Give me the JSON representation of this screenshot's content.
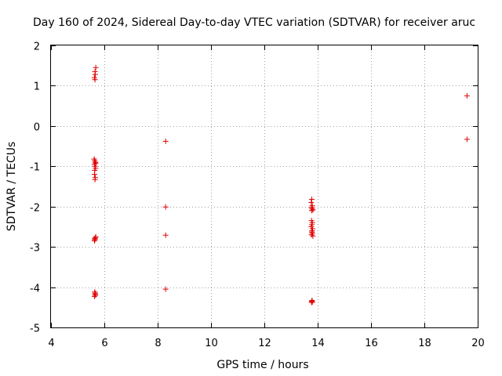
{
  "chart_data": {
    "type": "scatter",
    "title": "Day 160 of 2024, Sidereal Day-to-day VTEC variation (SDTVAR) for receiver aruc",
    "xlabel": "GPS time / hours",
    "ylabel": "SDTVAR / TECUs",
    "xlim": [
      4,
      20
    ],
    "ylim": [
      -5,
      2
    ],
    "xticks": [
      4,
      6,
      8,
      10,
      12,
      14,
      16,
      18,
      20
    ],
    "yticks": [
      -5,
      -4,
      -3,
      -2,
      -1,
      0,
      1,
      2
    ],
    "xtick_labels": [
      "4",
      "6",
      "8",
      "10",
      "12",
      "14",
      "16",
      "18",
      "20"
    ],
    "ytick_labels": [
      "-5",
      "-4",
      "-3",
      "-2",
      "-1",
      "0",
      "1",
      "2"
    ],
    "grid": true,
    "legend": "none",
    "series": [
      {
        "name": "SDTVAR",
        "color": "#e00000",
        "marker": "plus",
        "x": [
          5.68,
          5.65,
          5.66,
          5.63,
          5.65,
          5.62,
          5.64,
          5.66,
          5.68,
          5.63,
          5.65,
          5.67,
          5.64,
          5.63,
          5.66,
          5.65,
          5.68,
          5.66,
          5.64,
          5.65,
          5.63,
          5.64,
          5.66,
          5.65,
          5.67,
          5.63,
          8.3,
          8.3,
          8.3,
          8.3,
          13.78,
          13.76,
          13.8,
          13.77,
          13.79,
          13.82,
          13.78,
          13.77,
          13.8,
          13.78,
          13.76,
          13.81,
          13.79,
          13.78,
          13.8,
          13.77,
          13.82,
          13.79,
          13.78,
          13.8,
          13.77,
          19.6,
          19.6
        ],
        "y": [
          1.45,
          1.35,
          1.28,
          1.2,
          1.15,
          -0.82,
          -0.86,
          -0.9,
          -0.92,
          -0.95,
          -1.0,
          -1.05,
          -1.1,
          -1.2,
          -1.28,
          -1.33,
          -2.75,
          -2.78,
          -2.8,
          -2.82,
          -2.85,
          -4.12,
          -4.15,
          -4.18,
          -4.2,
          -4.23,
          -0.38,
          -2.01,
          -2.71,
          -4.05,
          -1.82,
          -1.9,
          -1.98,
          -2.02,
          -2.05,
          -2.08,
          -2.1,
          -2.35,
          -2.4,
          -2.45,
          -2.5,
          -2.55,
          -2.6,
          -2.63,
          -2.66,
          -2.7,
          -2.73,
          -4.33,
          -4.35,
          -4.37,
          -4.38,
          0.75,
          -0.33
        ]
      }
    ]
  }
}
